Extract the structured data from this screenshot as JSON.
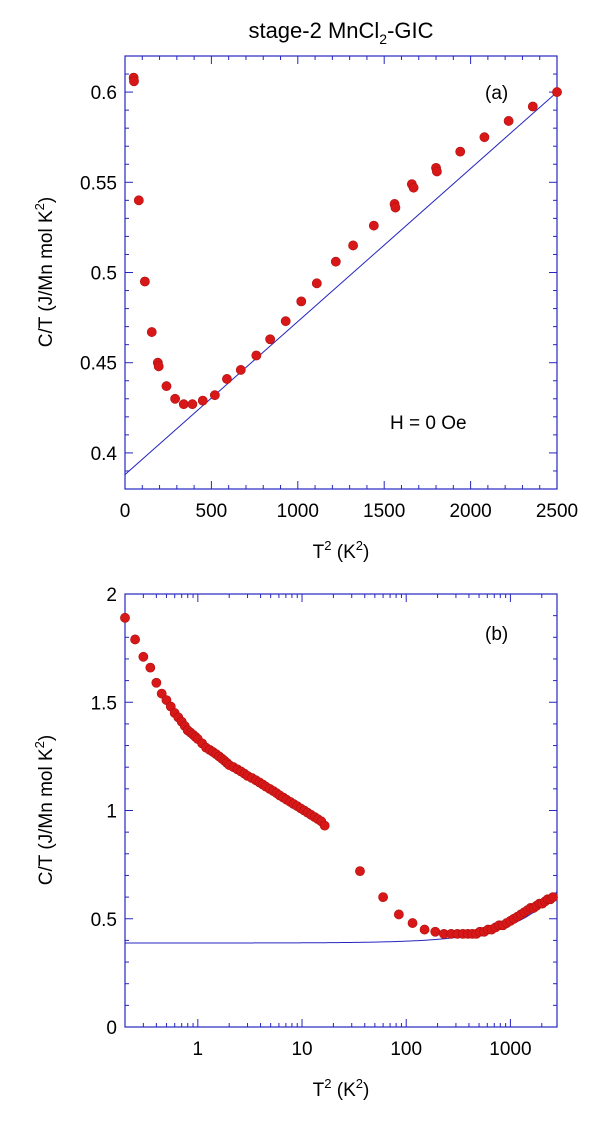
{
  "title": {
    "main": "stage-2 MnCl",
    "sub": "2",
    "rest": "-GIC"
  },
  "chart_data": [
    {
      "type": "scatter",
      "panel_label": "(a)",
      "annotation": "H = 0 Oe",
      "xlabel": {
        "main": "T",
        "sup": "2",
        "rest": " (K",
        "sup2": "2",
        "end": ")"
      },
      "ylabel": {
        "main": "C/T (J/Mn mol K",
        "sup": "2",
        "end": ")"
      },
      "xscale": "linear",
      "xlim": [
        0,
        2500
      ],
      "ylim": [
        0.38,
        0.62
      ],
      "xticks": [
        0,
        500,
        1000,
        1500,
        2000,
        2500
      ],
      "xtick_labels": [
        "0",
        "500",
        "1000",
        "1500",
        "2000",
        "2500"
      ],
      "yticks": [
        0.4,
        0.45,
        0.5,
        0.55,
        0.6
      ],
      "ytick_labels": [
        "0.4",
        "0.45",
        "0.5",
        "0.55",
        "0.6"
      ],
      "marker_color": "#d81818",
      "line_color": "#2626c0",
      "series": [
        {
          "x": [
            50,
            52,
            80,
            115,
            155,
            190,
            195,
            240,
            290,
            340,
            390,
            450,
            520,
            590,
            670,
            760,
            840,
            930,
            1020,
            1110,
            1220,
            1320,
            1440,
            1560,
            1565,
            1660,
            1670,
            1800,
            1805,
            1940,
            2080,
            2220,
            2360,
            2500
          ],
          "y": [
            0.608,
            0.606,
            0.54,
            0.495,
            0.467,
            0.45,
            0.448,
            0.437,
            0.43,
            0.427,
            0.427,
            0.429,
            0.432,
            0.441,
            0.446,
            0.454,
            0.463,
            0.473,
            0.484,
            0.494,
            0.506,
            0.515,
            0.526,
            0.538,
            0.536,
            0.549,
            0.547,
            0.558,
            0.556,
            0.567,
            0.575,
            0.584,
            0.592,
            0.6
          ]
        }
      ],
      "fit_line": {
        "x": [
          0,
          2500
        ],
        "y": [
          0.388,
          0.6
        ]
      }
    },
    {
      "type": "scatter",
      "panel_label": "(b)",
      "xlabel": {
        "main": "T",
        "sup": "2",
        "rest": " (K",
        "sup2": "2",
        "end": ")"
      },
      "ylabel": {
        "main": "C/T (J/Mn mol K",
        "sup": "2",
        "end": ")"
      },
      "xscale": "log",
      "xlim": [
        0.2,
        2800
      ],
      "ylim": [
        0,
        2
      ],
      "xticks": [
        1,
        10,
        100,
        1000
      ],
      "xtick_labels": [
        "1",
        "10",
        "100",
        "1000"
      ],
      "yticks": [
        0,
        0.5,
        1,
        1.5,
        2
      ],
      "ytick_labels": [
        "0",
        "0.5",
        "1",
        "1.5",
        "2"
      ],
      "marker_color": "#d81818",
      "line_color": "#2626c0",
      "series": [
        {
          "x": [
            0.2,
            0.25,
            0.3,
            0.35,
            0.4,
            0.45,
            0.5,
            0.55,
            0.6,
            0.65,
            0.7,
            0.75,
            0.8,
            0.85,
            0.9,
            0.95,
            1.0,
            1.1,
            1.2,
            1.3,
            1.4,
            1.5,
            1.6,
            1.7,
            1.8,
            1.9,
            2.0,
            2.2,
            2.4,
            2.6,
            2.8,
            3.0,
            3.3,
            3.6,
            3.9,
            4.2,
            4.5,
            4.9,
            5.3,
            5.7,
            6.1,
            6.6,
            7.1,
            7.7,
            8.3,
            9.0,
            9.7,
            10.5,
            11.3,
            12.2,
            13.2,
            14.2,
            15.3,
            16.5,
            36,
            60,
            85,
            115,
            150,
            190,
            230,
            270,
            310,
            350,
            390,
            430,
            470,
            510,
            560,
            610,
            660,
            720,
            780,
            850,
            920,
            1000,
            1080,
            1170,
            1260,
            1360,
            1460,
            1560,
            1670,
            1780,
            1900,
            2020,
            2150,
            2280,
            2420,
            2560
          ],
          "y": [
            1.89,
            1.79,
            1.71,
            1.66,
            1.59,
            1.54,
            1.51,
            1.48,
            1.45,
            1.43,
            1.41,
            1.39,
            1.37,
            1.36,
            1.35,
            1.34,
            1.33,
            1.31,
            1.29,
            1.28,
            1.27,
            1.26,
            1.25,
            1.24,
            1.23,
            1.22,
            1.21,
            1.2,
            1.19,
            1.18,
            1.17,
            1.16,
            1.15,
            1.14,
            1.13,
            1.12,
            1.11,
            1.1,
            1.09,
            1.08,
            1.07,
            1.06,
            1.05,
            1.04,
            1.03,
            1.02,
            1.01,
            1.0,
            0.99,
            0.98,
            0.97,
            0.96,
            0.95,
            0.93,
            0.72,
            0.6,
            0.52,
            0.48,
            0.45,
            0.44,
            0.43,
            0.43,
            0.43,
            0.43,
            0.43,
            0.43,
            0.43,
            0.44,
            0.44,
            0.45,
            0.45,
            0.46,
            0.47,
            0.47,
            0.48,
            0.49,
            0.5,
            0.51,
            0.52,
            0.53,
            0.54,
            0.55,
            0.55,
            0.56,
            0.57,
            0.57,
            0.58,
            0.59,
            0.59,
            0.6
          ]
        }
      ],
      "fit_line": {
        "slope": 8.48e-05,
        "intercept": 0.388
      }
    }
  ]
}
